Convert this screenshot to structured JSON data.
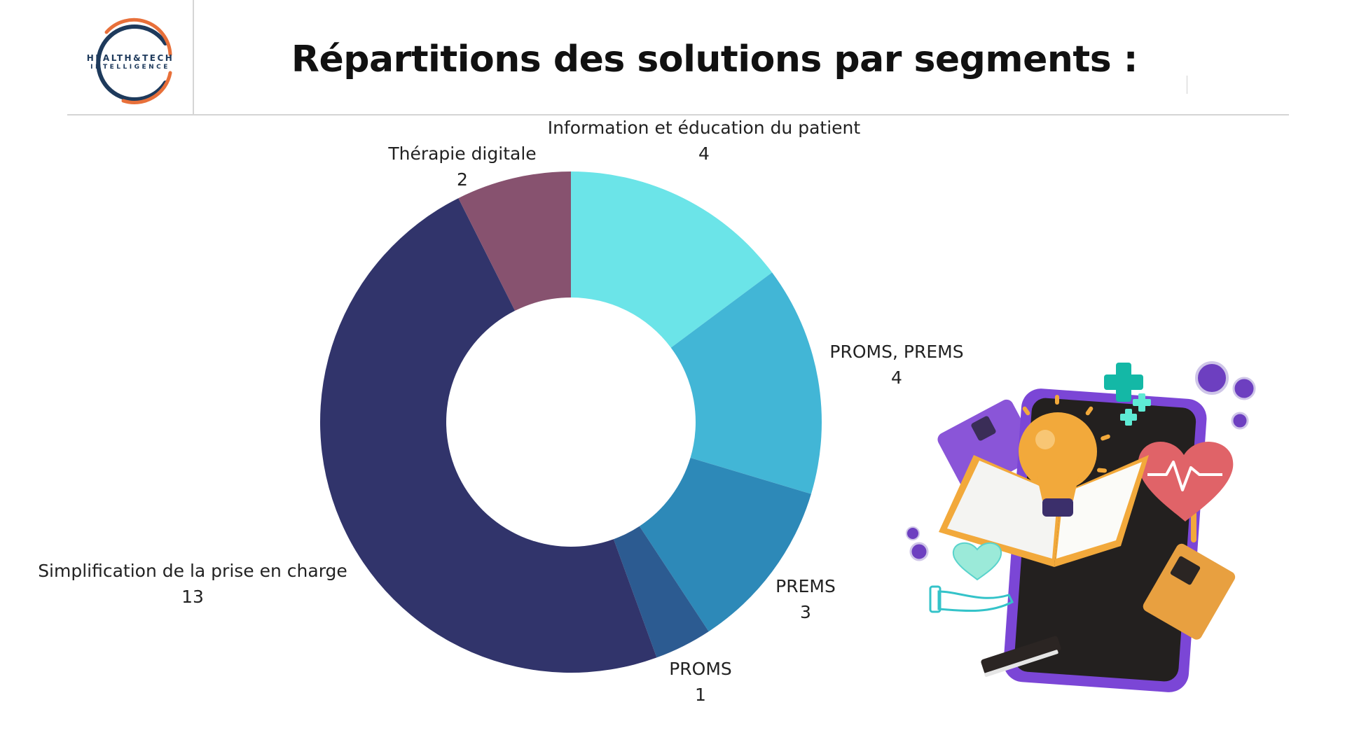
{
  "logo": {
    "line1": "HEALTH&TECH",
    "line2": "INTELLIGENCE"
  },
  "colors": {
    "ring_navy": "#1e3a5c",
    "ring_orange": "#e8703a",
    "divider": "#d5d5d5"
  },
  "chart_data": {
    "type": "pie",
    "donut": true,
    "title": "Répartitions des solutions par segments :",
    "series": [
      {
        "name": "",
        "values": [
          {
            "label": "Information et éducation du patient",
            "value": 4,
            "color": "#6be4e8"
          },
          {
            "label": "PROMS, PREMS",
            "value": 4,
            "color": "#42b6d6"
          },
          {
            "label": "PREMS",
            "value": 3,
            "color": "#2d89b8"
          },
          {
            "label": "PROMS",
            "value": 1,
            "color": "#2c5b91"
          },
          {
            "label": "Simplification de la prise en charge",
            "value": 13,
            "color": "#31346b"
          },
          {
            "label": "Thérapie digitale",
            "value": 2,
            "color": "#87526f"
          }
        ]
      }
    ],
    "legend": "none",
    "data_labels": "outside"
  },
  "illustration": {
    "icons": [
      "smartphone-icon",
      "lightbulb-icon",
      "open-book-icon",
      "heart-pulse-icon",
      "medical-cross-icon",
      "hand-heart-icon",
      "medical-book-icon"
    ],
    "colors": {
      "phone": "#7b46d6",
      "screen": "#23201f",
      "bulb": "#f2a93b",
      "heart": "#e06368",
      "cross": "#14b8a6"
    }
  }
}
